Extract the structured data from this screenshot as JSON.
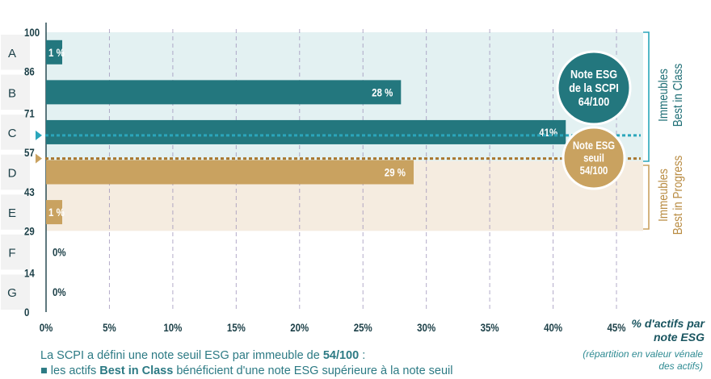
{
  "chart_data": {
    "type": "bar",
    "orientation": "horizontal",
    "categories": [
      "A",
      "B",
      "C",
      "D",
      "E",
      "F",
      "G"
    ],
    "values": [
      1,
      28,
      41,
      29,
      1,
      0,
      0
    ],
    "value_labels": [
      "1 %",
      "28 %",
      "41%",
      "29 %",
      "1 %",
      "0%",
      "0%"
    ],
    "score_ticks": [
      "100",
      "86",
      "71",
      "57",
      "43",
      "29",
      "14",
      "0"
    ],
    "x_ticks": [
      "0%",
      "5%",
      "10%",
      "15%",
      "20%",
      "25%",
      "30%",
      "35%",
      "40%",
      "45%"
    ],
    "xlim": [
      0,
      45
    ],
    "xlabel": "% d'actifs par note ESG",
    "xlabel_sub": "(répartition en valeur vénale des actifs)",
    "scpi_score": 64,
    "threshold_score": 54,
    "badge_scpi": [
      "Note ESG",
      "de la SCPI",
      "64/100"
    ],
    "badge_threshold": [
      "Note ESG",
      "seuil",
      "54/100"
    ],
    "band_best_in_class": [
      "Immeubles",
      "Best in Class"
    ],
    "band_best_in_progress": [
      "Immeubles",
      "Best in Progress"
    ],
    "colors": {
      "teal": "#23777e",
      "gold": "#c9a260",
      "teal_band": "#e3f1f2",
      "gold_band": "#f5ece0",
      "dash_teal": "#2ba6bb",
      "dash_gold": "#a9772f",
      "label_text": "#1b3f47"
    }
  },
  "caption": {
    "line1_pre": "La SCPI a défini une note seuil ESG par immeuble de ",
    "line1_bold": "54/100",
    "line1_post": " :",
    "line2_pre": "les actifs ",
    "line2_bold": "Best in Class",
    "line2_post": " bénéficient d'une note ESG supérieure à la note seuil"
  }
}
